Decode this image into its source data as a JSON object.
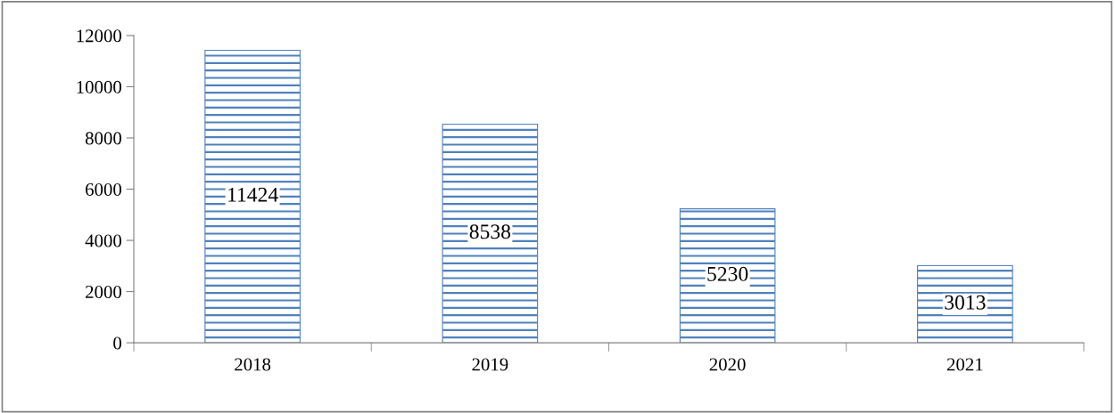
{
  "chart_data": {
    "type": "bar",
    "categories": [
      "2018",
      "2019",
      "2020",
      "2021"
    ],
    "values": [
      11424,
      8538,
      5230,
      3013
    ],
    "color": "#4f81bd",
    "ylim": [
      0,
      12000
    ],
    "yticks": [
      0,
      2000,
      4000,
      6000,
      8000,
      10000,
      12000
    ],
    "data_labels": true,
    "grid": false,
    "legend": false
  }
}
